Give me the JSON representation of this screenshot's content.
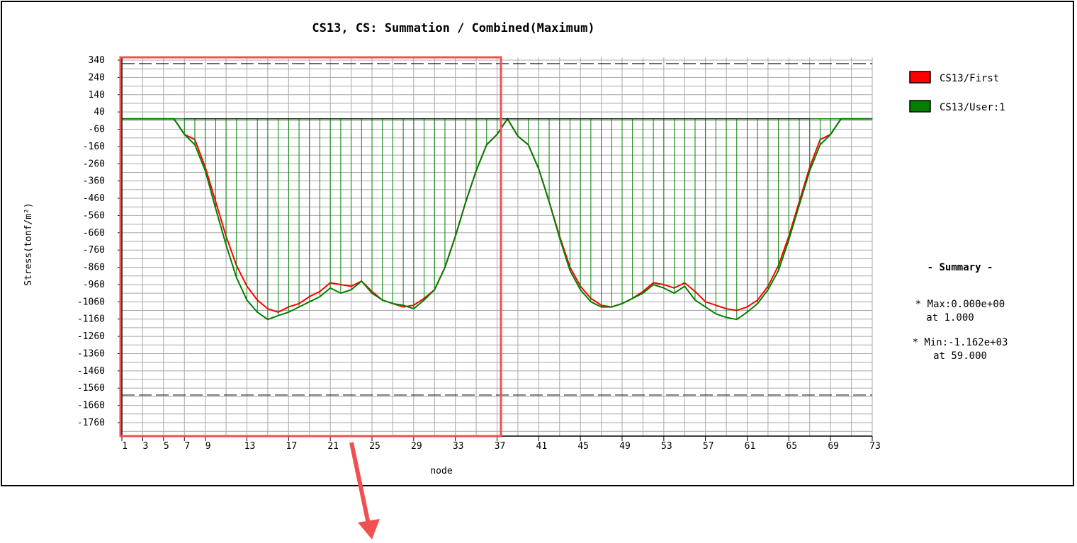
{
  "chart_data": {
    "type": "line",
    "title": "CS13, CS: Summation / Combined(Maximum)",
    "xlabel": "node",
    "ylabel": "Stress(tonf/m²)",
    "xlim": [
      1,
      73
    ],
    "ylim": [
      -1860,
      360
    ],
    "x_ticks": [
      "1",
      "3",
      "5",
      "7",
      "9",
      "13",
      "17",
      "21",
      "25",
      "29",
      "33",
      "37",
      "41",
      "45",
      "49",
      "53",
      "57",
      "61",
      "65",
      "69",
      "73"
    ],
    "y_ticks": [
      "340",
      "240",
      "140",
      "40",
      "-60",
      "-160",
      "-260",
      "-360",
      "-460",
      "-560",
      "-660",
      "-760",
      "-860",
      "-960",
      "-1060",
      "-1160",
      "-1260",
      "-1360",
      "-1460",
      "-1560",
      "-1660",
      "-1760"
    ],
    "ref_lines": [
      320,
      -1600
    ],
    "grid": true,
    "legend_position": "right",
    "series": [
      {
        "name": "CS13/First",
        "color": "#ff0000",
        "values": [
          0,
          0,
          0,
          0,
          0,
          0,
          -90,
          -120,
          -280,
          -480,
          -680,
          -850,
          -970,
          -1050,
          -1100,
          -1120,
          -1090,
          -1070,
          -1030,
          -1000,
          -950,
          -960,
          -970,
          -940,
          -1000,
          -1050,
          -1070,
          -1090,
          -1080,
          -1040,
          -990,
          -860,
          -680,
          -480,
          -300,
          -150,
          -90,
          0,
          -100,
          -150,
          -290,
          -480,
          -680,
          -860,
          -970,
          -1040,
          -1080,
          -1090,
          -1070,
          -1040,
          -1000,
          -950,
          -960,
          -980,
          -950,
          -1000,
          -1060,
          -1080,
          -1100,
          -1110,
          -1090,
          -1050,
          -970,
          -850,
          -680,
          -480,
          -280,
          -120,
          -90,
          0,
          0,
          0,
          0
        ]
      },
      {
        "name": "CS13/User:1",
        "color": "#008000",
        "values": [
          0,
          0,
          0,
          0,
          0,
          0,
          -90,
          -150,
          -300,
          -520,
          -730,
          -920,
          -1050,
          -1120,
          -1162,
          -1140,
          -1120,
          -1090,
          -1060,
          -1030,
          -980,
          -1010,
          -990,
          -940,
          -1010,
          -1050,
          -1070,
          -1080,
          -1100,
          -1050,
          -990,
          -860,
          -680,
          -480,
          -300,
          -150,
          -90,
          0,
          -100,
          -150,
          -290,
          -480,
          -690,
          -880,
          -990,
          -1060,
          -1090,
          -1090,
          -1070,
          -1040,
          -1010,
          -960,
          -980,
          -1010,
          -970,
          -1050,
          -1090,
          -1130,
          -1150,
          -1162,
          -1120,
          -1070,
          -990,
          -880,
          -700,
          -500,
          -300,
          -150,
          -90,
          0,
          0,
          0,
          0
        ]
      }
    ]
  },
  "legend": {
    "items": [
      {
        "label": "CS13/First",
        "color": "#ff0000"
      },
      {
        "label": "CS13/User:1",
        "color": "#008000"
      }
    ]
  },
  "summary": {
    "title": "- Summary -",
    "max_line": "* Max:0.000e+00",
    "max_at": "at  1.000",
    "min_line": "* Min:-1.162e+03",
    "min_at": "at 59.000"
  },
  "annotation": {
    "highlight_color": "#f05050"
  }
}
